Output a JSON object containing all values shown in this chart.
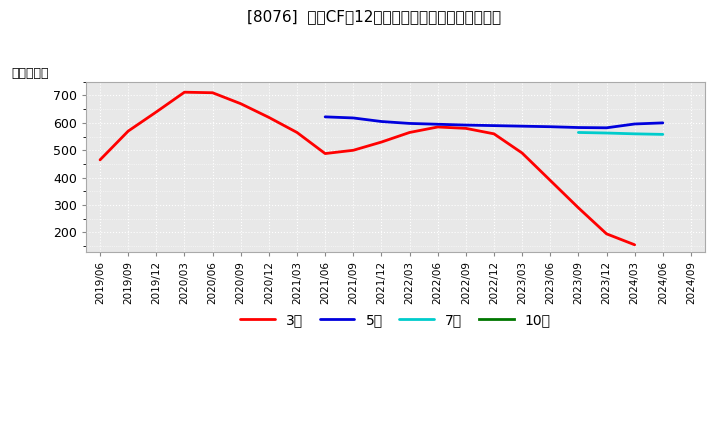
{
  "title": "[8076]  投賄CFの12か月移動合計の標準偏差の推移",
  "ylabel": "（百万円）",
  "background_color": "#ffffff",
  "plot_bg_color": "#e8e8e8",
  "grid_color": "#ffffff",
  "ylim": [
    130,
    750
  ],
  "yticks": [
    200,
    300,
    400,
    500,
    600,
    700
  ],
  "series": {
    "3year": {
      "color": "#ff0000",
      "label": "3年",
      "data": [
        [
          "2019/06",
          465
        ],
        [
          "2019/09",
          570
        ],
        [
          "2019/12",
          640
        ],
        [
          "2020/03",
          712
        ],
        [
          "2020/06",
          710
        ],
        [
          "2020/09",
          670
        ],
        [
          "2020/12",
          620
        ],
        [
          "2021/03",
          565
        ],
        [
          "2021/06",
          488
        ],
        [
          "2021/09",
          500
        ],
        [
          "2021/12",
          530
        ],
        [
          "2022/03",
          565
        ],
        [
          "2022/06",
          585
        ],
        [
          "2022/09",
          580
        ],
        [
          "2022/12",
          560
        ],
        [
          "2023/03",
          490
        ],
        [
          "2023/06",
          390
        ],
        [
          "2023/09",
          290
        ],
        [
          "2023/12",
          195
        ],
        [
          "2024/03",
          155
        ]
      ]
    },
    "5year": {
      "color": "#0000dd",
      "label": "5年",
      "data": [
        [
          "2021/06",
          622
        ],
        [
          "2021/09",
          618
        ],
        [
          "2021/12",
          605
        ],
        [
          "2022/03",
          598
        ],
        [
          "2022/06",
          595
        ],
        [
          "2022/09",
          592
        ],
        [
          "2022/12",
          590
        ],
        [
          "2023/03",
          588
        ],
        [
          "2023/06",
          586
        ],
        [
          "2023/09",
          583
        ],
        [
          "2023/12",
          582
        ],
        [
          "2024/03",
          596
        ],
        [
          "2024/06",
          600
        ]
      ]
    },
    "7year": {
      "color": "#00cccc",
      "label": "7年",
      "data": [
        [
          "2023/09",
          565
        ],
        [
          "2023/12",
          563
        ],
        [
          "2024/03",
          560
        ],
        [
          "2024/06",
          558
        ]
      ]
    },
    "10year": {
      "color": "#007700",
      "label": "10年",
      "data": []
    }
  },
  "xticklabels": [
    "2019/06",
    "2019/09",
    "2019/12",
    "2020/03",
    "2020/06",
    "2020/09",
    "2020/12",
    "2021/03",
    "2021/06",
    "2021/09",
    "2021/12",
    "2022/03",
    "2022/06",
    "2022/09",
    "2022/12",
    "2023/03",
    "2023/06",
    "2023/09",
    "2023/12",
    "2024/03",
    "2024/06",
    "2024/09"
  ],
  "legend_fontsize": 10,
  "title_fontsize": 11,
  "ylabel_fontsize": 9,
  "linewidth": 2.0
}
